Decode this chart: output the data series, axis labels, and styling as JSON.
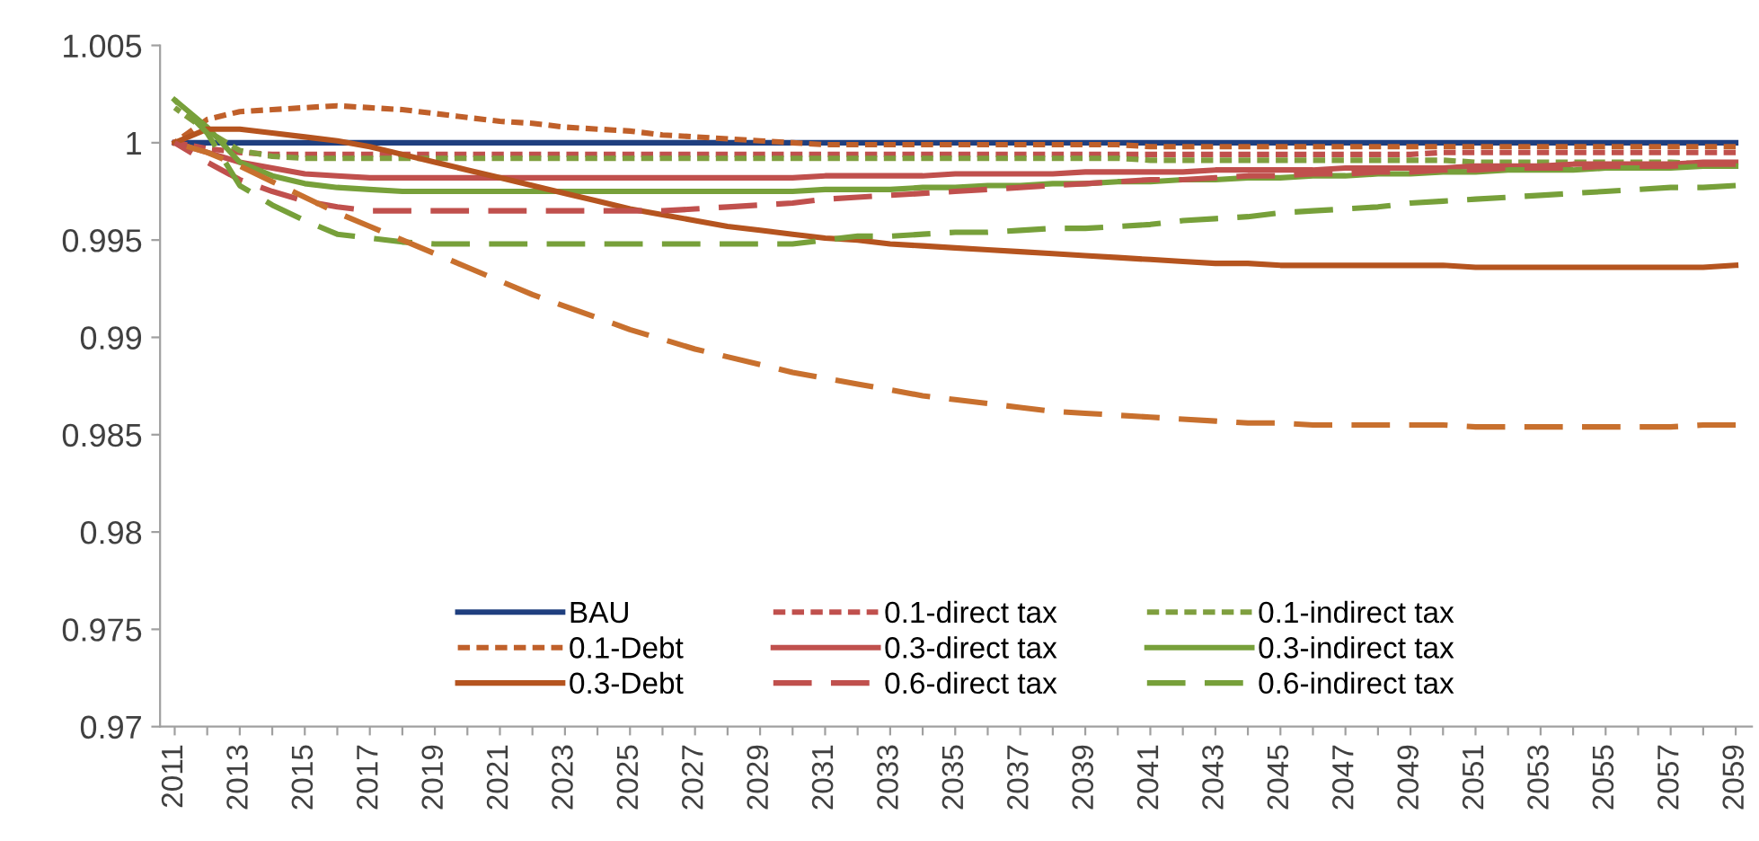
{
  "chart_data": {
    "type": "line",
    "categories": [
      "2011",
      null,
      "2013",
      null,
      "2015",
      null,
      "2017",
      null,
      "2019",
      null,
      "2021",
      null,
      "2023",
      null,
      "2025",
      null,
      "2027",
      null,
      "2029",
      null,
      "2031",
      null,
      "2033",
      null,
      "2035",
      null,
      "2037",
      null,
      "2039",
      null,
      "2041",
      null,
      "2043",
      null,
      "2045",
      null,
      "2047",
      null,
      "2049",
      null,
      "2051",
      null,
      "2053",
      null,
      "2055",
      null,
      "2057",
      null,
      "2059"
    ],
    "ylim": [
      0.97,
      1.005
    ],
    "yticks": [
      0.97,
      0.975,
      0.98,
      0.985,
      0.99,
      0.995,
      1,
      1.005
    ],
    "grid": false,
    "legend": "bottom",
    "marker": "none",
    "series": [
      {
        "name": "BAU",
        "color": "#1f3f7f",
        "line_style": "solid",
        "values": [
          1,
          1,
          1,
          1,
          1,
          1,
          1,
          1,
          1,
          1,
          1,
          1,
          1,
          1,
          1,
          1,
          1,
          1,
          1,
          1,
          1,
          1,
          1,
          1,
          1,
          1,
          1,
          1,
          1,
          1,
          1,
          1,
          1,
          1,
          1,
          1,
          1,
          1,
          1,
          1,
          1,
          1,
          1,
          1,
          1,
          1,
          1,
          1,
          1
        ]
      },
      {
        "name": "0.1-direct tax",
        "color": "#c0504d",
        "line_style": "dotted",
        "values": [
          1,
          0.9997,
          0.9995,
          0.9994,
          0.9994,
          0.9994,
          0.9994,
          0.9994,
          0.9994,
          0.9994,
          0.9994,
          0.9994,
          0.9994,
          0.9994,
          0.9994,
          0.9994,
          0.9994,
          0.9994,
          0.9994,
          0.9994,
          0.9994,
          0.9994,
          0.9994,
          0.9994,
          0.9994,
          0.9994,
          0.9994,
          0.9994,
          0.9994,
          0.9994,
          0.9994,
          0.9994,
          0.9994,
          0.9994,
          0.9994,
          0.9994,
          0.9994,
          0.9994,
          0.9994,
          0.9995,
          0.9995,
          0.9995,
          0.9995,
          0.9995,
          0.9995,
          0.9995,
          0.9995,
          0.9995,
          0.9995
        ]
      },
      {
        "name": "0.1-indirect tax",
        "color": "#7f9f3f",
        "line_style": "dotted",
        "values": [
          1.0018,
          1.0006,
          0.9996,
          0.9993,
          0.9992,
          0.9992,
          0.9992,
          0.9992,
          0.9992,
          0.9992,
          0.9992,
          0.9992,
          0.9992,
          0.9992,
          0.9992,
          0.9992,
          0.9992,
          0.9992,
          0.9992,
          0.9992,
          0.9992,
          0.9992,
          0.9992,
          0.9992,
          0.9992,
          0.9992,
          0.9992,
          0.9992,
          0.9992,
          0.9992,
          0.9991,
          0.9991,
          0.9991,
          0.9991,
          0.9991,
          0.9991,
          0.9991,
          0.9991,
          0.9991,
          0.9991,
          0.999,
          0.999,
          0.999,
          0.999,
          0.999,
          0.999,
          0.999,
          0.9989,
          0.9989
        ]
      },
      {
        "name": "0.1-Debt",
        "color": "#c0602a",
        "line_style": "dotted",
        "values": [
          1,
          1.0012,
          1.0016,
          1.0017,
          1.0018,
          1.0019,
          1.0018,
          1.0017,
          1.0015,
          1.0013,
          1.0011,
          1.001,
          1.0008,
          1.0007,
          1.0006,
          1.0004,
          1.0003,
          1.0002,
          1.0001,
          1,
          0.9999,
          0.9999,
          0.9999,
          0.9999,
          0.9999,
          0.9999,
          0.9999,
          0.9999,
          0.9999,
          0.9999,
          0.9998,
          0.9998,
          0.9998,
          0.9998,
          0.9998,
          0.9998,
          0.9998,
          0.9998,
          0.9998,
          0.9998,
          0.9998,
          0.9998,
          0.9998,
          0.9998,
          0.9998,
          0.9998,
          0.9998,
          0.9998,
          0.9998
        ]
      },
      {
        "name": "0.3-direct tax",
        "color": "#c0504d",
        "line_style": "solid",
        "values": [
          1,
          0.9995,
          0.999,
          0.9987,
          0.9984,
          0.9983,
          0.9982,
          0.9982,
          0.9982,
          0.9982,
          0.9982,
          0.9982,
          0.9982,
          0.9982,
          0.9982,
          0.9982,
          0.9982,
          0.9982,
          0.9982,
          0.9982,
          0.9983,
          0.9983,
          0.9983,
          0.9983,
          0.9984,
          0.9984,
          0.9984,
          0.9984,
          0.9985,
          0.9985,
          0.9985,
          0.9985,
          0.9986,
          0.9986,
          0.9986,
          0.9986,
          0.9987,
          0.9987,
          0.9987,
          0.9987,
          0.9988,
          0.9988,
          0.9988,
          0.9989,
          0.9989,
          0.9989,
          0.9989,
          0.999,
          0.999
        ]
      },
      {
        "name": "0.3-indirect tax",
        "color": "#77a03a",
        "line_style": "solid",
        "values": [
          1.0022,
          1.0008,
          0.999,
          0.9983,
          0.9979,
          0.9977,
          0.9976,
          0.9975,
          0.9975,
          0.9975,
          0.9975,
          0.9975,
          0.9975,
          0.9975,
          0.9975,
          0.9975,
          0.9975,
          0.9975,
          0.9975,
          0.9975,
          0.9976,
          0.9976,
          0.9976,
          0.9977,
          0.9977,
          0.9978,
          0.9978,
          0.9979,
          0.9979,
          0.998,
          0.998,
          0.9981,
          0.9981,
          0.9982,
          0.9982,
          0.9983,
          0.9983,
          0.9984,
          0.9984,
          0.9985,
          0.9985,
          0.9986,
          0.9986,
          0.9986,
          0.9987,
          0.9987,
          0.9987,
          0.9988,
          0.9988
        ]
      },
      {
        "name": "0.3-Debt",
        "color": "#b5541f",
        "line_style": "solid",
        "values": [
          1,
          1.0007,
          1.0007,
          1.0005,
          1.0003,
          1.0001,
          0.9998,
          0.9994,
          0.999,
          0.9986,
          0.9982,
          0.9978,
          0.9974,
          0.997,
          0.9966,
          0.9963,
          0.996,
          0.9957,
          0.9955,
          0.9953,
          0.9951,
          0.995,
          0.9948,
          0.9947,
          0.9946,
          0.9945,
          0.9944,
          0.9943,
          0.9942,
          0.9941,
          0.994,
          0.9939,
          0.9938,
          0.9938,
          0.9937,
          0.9937,
          0.9937,
          0.9937,
          0.9937,
          0.9937,
          0.9936,
          0.9936,
          0.9936,
          0.9936,
          0.9936,
          0.9936,
          0.9936,
          0.9936,
          0.9937
        ]
      },
      {
        "name": "0.6-direct tax",
        "color": "#c0504d",
        "line_style": "dashed",
        "values": [
          1,
          0.999,
          0.9981,
          0.9975,
          0.997,
          0.9967,
          0.9965,
          0.9965,
          0.9965,
          0.9965,
          0.9965,
          0.9965,
          0.9965,
          0.9965,
          0.9965,
          0.9965,
          0.9966,
          0.9967,
          0.9968,
          0.9969,
          0.9971,
          0.9972,
          0.9973,
          0.9974,
          0.9975,
          0.9976,
          0.9977,
          0.9978,
          0.9979,
          0.998,
          0.9981,
          0.9981,
          0.9982,
          0.9983,
          0.9983,
          0.9984,
          0.9984,
          0.9985,
          0.9985,
          0.9986,
          0.9986,
          0.9987,
          0.9987,
          0.9987,
          0.9988,
          0.9988,
          0.9988,
          0.9989,
          0.9989
        ]
      },
      {
        "name": "0.6-indirect tax",
        "color": "#77a03a",
        "line_style": "dashed",
        "values": [
          1.0022,
          1.0005,
          0.9978,
          0.9968,
          0.996,
          0.9953,
          0.9951,
          0.9949,
          0.9948,
          0.9948,
          0.9948,
          0.9948,
          0.9948,
          0.9948,
          0.9948,
          0.9948,
          0.9948,
          0.9948,
          0.9948,
          0.9948,
          0.995,
          0.9952,
          0.9952,
          0.9953,
          0.9954,
          0.9954,
          0.9955,
          0.9956,
          0.9956,
          0.9957,
          0.9958,
          0.996,
          0.9961,
          0.9962,
          0.9964,
          0.9965,
          0.9966,
          0.9967,
          0.9969,
          0.997,
          0.9971,
          0.9972,
          0.9973,
          0.9974,
          0.9975,
          0.9976,
          0.9977,
          0.9977,
          0.9978
        ]
      },
      {
        "color": "#c8702e",
        "line_style": "dashed",
        "values": [
          1,
          0.9995,
          0.9988,
          0.998,
          0.9972,
          0.9964,
          0.9957,
          0.995,
          0.9943,
          0.9936,
          0.9929,
          0.9922,
          0.9916,
          0.991,
          0.9904,
          0.9899,
          0.9894,
          0.989,
          0.9886,
          0.9882,
          0.9879,
          0.9876,
          0.9873,
          0.987,
          0.9868,
          0.9866,
          0.9864,
          0.9862,
          0.9861,
          0.986,
          0.9859,
          0.9858,
          0.9857,
          0.9856,
          0.9856,
          0.9855,
          0.9855,
          0.9855,
          0.9855,
          0.9855,
          0.9854,
          0.9854,
          0.9854,
          0.9854,
          0.9854,
          0.9854,
          0.9854,
          0.9855,
          0.9855
        ]
      }
    ]
  }
}
